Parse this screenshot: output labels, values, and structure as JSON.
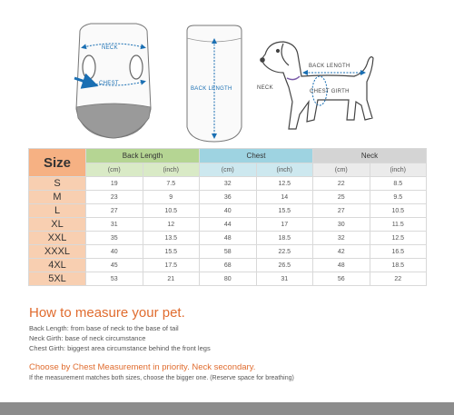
{
  "illustration": {
    "neck_label": "NECK",
    "chest_label": "CHEST",
    "back_length_label": "BACK LENGTH",
    "dog_back_length_label": "BACK LENGTH",
    "dog_neck_label": "NECK",
    "dog_chest_girth_label": "CHEST GIRTH"
  },
  "table": {
    "size_header": "Size",
    "groups": {
      "back_length": "Back Length",
      "chest": "Chest",
      "neck": "Neck"
    },
    "units": [
      "(cm)",
      "(inch)",
      "(cm)",
      "(inch)",
      "(cm)",
      "(inch)"
    ],
    "rows": [
      {
        "size": "S",
        "values": [
          "19",
          "7.5",
          "32",
          "12.5",
          "22",
          "8.5"
        ]
      },
      {
        "size": "M",
        "values": [
          "23",
          "9",
          "36",
          "14",
          "25",
          "9.5"
        ]
      },
      {
        "size": "L",
        "values": [
          "27",
          "10.5",
          "40",
          "15.5",
          "27",
          "10.5"
        ]
      },
      {
        "size": "XL",
        "values": [
          "31",
          "12",
          "44",
          "17",
          "30",
          "11.5"
        ]
      },
      {
        "size": "XXL",
        "values": [
          "35",
          "13.5",
          "48",
          "18.5",
          "32",
          "12.5"
        ]
      },
      {
        "size": "XXXL",
        "values": [
          "40",
          "15.5",
          "58",
          "22.5",
          "42",
          "16.5"
        ]
      },
      {
        "size": "4XL",
        "values": [
          "45",
          "17.5",
          "68",
          "26.5",
          "48",
          "18.5"
        ]
      },
      {
        "size": "5XL",
        "values": [
          "53",
          "21",
          "80",
          "31",
          "56",
          "22"
        ]
      }
    ]
  },
  "how_title": "How to measure your pet.",
  "notes": [
    "Back Length: from base of neck to the base of tail",
    "Neck Girth: base of neck circumstance",
    "Chest Girth: biggest area circumstance behind the front legs"
  ],
  "priority": "Choose by Chest Measurement in priority. Neck secondary.",
  "priority_note": "If the measurement matches both sizes, choose the bigger one. (Reserve space for breathing)",
  "colors": {
    "accent_orange": "#e06c2f",
    "size_header": "#f6b183",
    "back_length_header": "#b5d593",
    "chest_header": "#9ed3e1",
    "neck_header": "#d4d4d4",
    "arrow_blue": "#1a6fb3"
  }
}
